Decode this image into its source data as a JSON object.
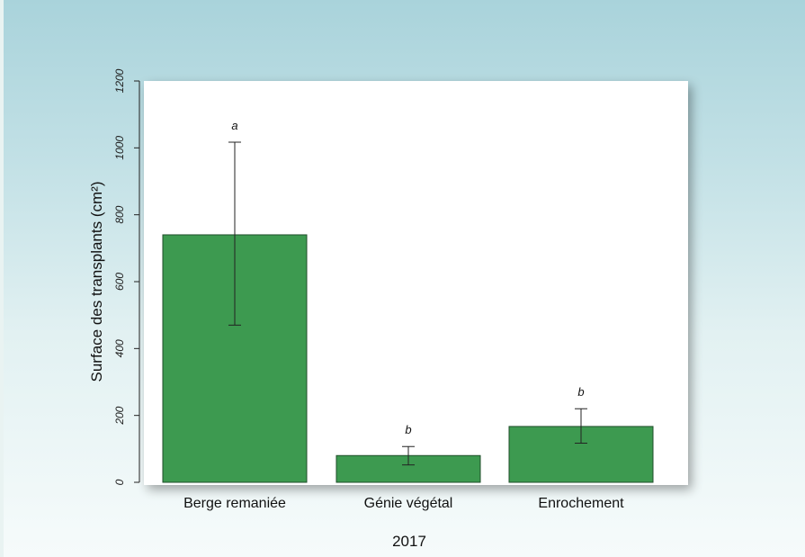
{
  "chart_data": {
    "type": "bar",
    "title": "",
    "xlabel": "2017",
    "ylabel": "Surface des transplants (cm²)",
    "ylim": [
      0,
      1200
    ],
    "yticks": [
      "0",
      "200",
      "400",
      "600",
      "800",
      "1000",
      "1200"
    ],
    "categories": [
      "Berge remaniée",
      "Génie végétal",
      "Enrochement"
    ],
    "values": [
      740,
      80,
      167
    ],
    "error_low": [
      470,
      52,
      117
    ],
    "error_high": [
      1017,
      107,
      220
    ],
    "significance": [
      "a",
      "b",
      "b"
    ],
    "grid": false,
    "legend": "none",
    "colors": {
      "bar": "#3d9a50",
      "bar_edge": "#1f4d2a",
      "plot_bg": "#ffffff",
      "text": "#111111"
    }
  }
}
